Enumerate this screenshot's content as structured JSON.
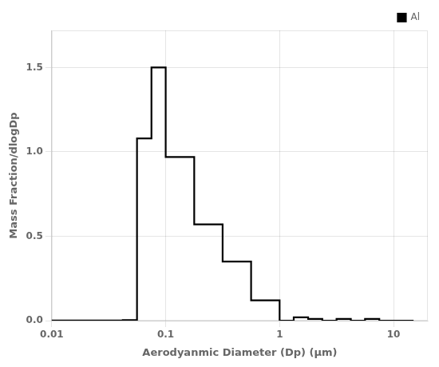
{
  "chart_data": {
    "type": "histogram",
    "xlabel": "Aerodyanmic Diameter (Dp) (μm)",
    "ylabel": "Mass Fraction/dlogDp",
    "bins": [
      0.01,
      0.032,
      0.042,
      0.056,
      0.075,
      0.1,
      0.133,
      0.178,
      0.237,
      0.316,
      0.422,
      0.562,
      0.75,
      1.0,
      1.33,
      1.78,
      2.37,
      3.16,
      4.22,
      5.62,
      7.5,
      10.0,
      15.0
    ],
    "series": [
      {
        "name": "Al",
        "color": "#000000",
        "marker": "square",
        "values": [
          0.0,
          0.001,
          0.001,
          0.003,
          1.08,
          1.5,
          0.97,
          0.97,
          0.57,
          0.57,
          0.35,
          0.35,
          0.12,
          0.12,
          0.0,
          0.02,
          0.01,
          0.0,
          0.01,
          0.0,
          0.01,
          0.0
        ]
      }
    ],
    "log": "x",
    "xlim": [
      0.01,
      20
    ],
    "ylim": [
      0.0,
      1.72
    ],
    "xticks": [
      0.01,
      0.1,
      1,
      10
    ],
    "yticks": [
      {
        "value": 0,
        "label": "0.0"
      },
      0.5,
      {
        "value": 1,
        "label": "1.0"
      },
      1.5
    ],
    "grid": true,
    "legend": "upper right"
  }
}
